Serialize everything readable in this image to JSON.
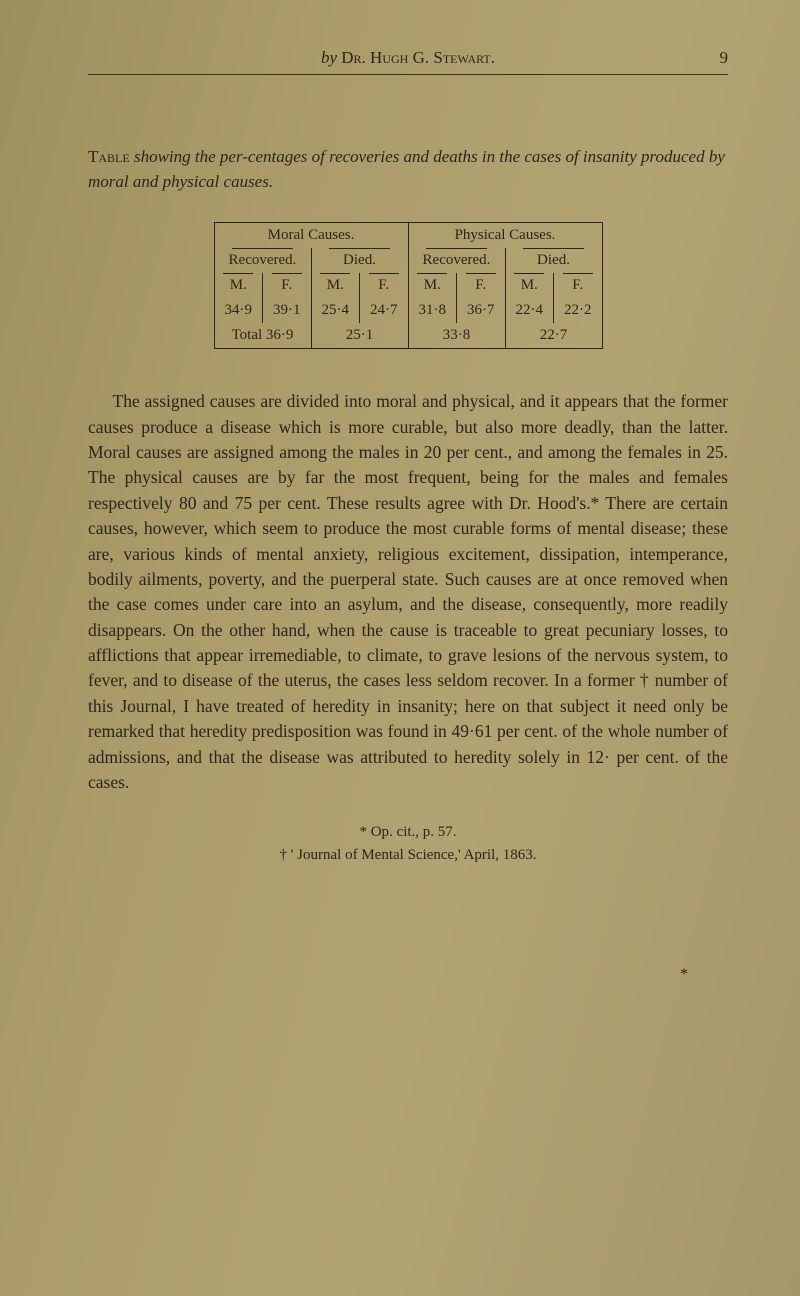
{
  "header": {
    "by": "by",
    "author_sc": "Dr. Hugh G. Stewart.",
    "page_number": "9"
  },
  "table_caption": {
    "lead_sc": "Table",
    "rest_italic": "showing the per-centages of recoveries and deaths in the cases of insanity produced by moral and physical causes."
  },
  "table": {
    "group_headers": [
      "Moral Causes.",
      "Physical Causes."
    ],
    "sub_headers": [
      "Recovered.",
      "Died.",
      "Recovered.",
      "Died."
    ],
    "mf_labels": [
      "M.",
      "F.",
      "M.",
      "F.",
      "M.",
      "F.",
      "M.",
      "F."
    ],
    "values": [
      "34·9",
      "39·1",
      "25·4",
      "24·7",
      "31·8",
      "36·7",
      "22·4",
      "22·2"
    ],
    "totals_label": "Total 36·9",
    "totals": [
      "25·1",
      "33·8",
      "22·7"
    ]
  },
  "body": {
    "paragraph": "The assigned causes are divided into moral and physical, and it appears that the former causes produce a disease which is more curable, but also more deadly, than the latter. Moral causes are assigned among the males in 20 per cent., and among the females in 25. The physical causes are by far the most frequent, being for the males and females respectively 80 and 75 per cent. These results agree with Dr. Hood's.* There are certain causes, however, which seem to produce the most curable forms of mental disease; these are, various kinds of mental anxiety, religious excitement, dissipation, intemperance, bodily ailments, poverty, and the puerperal state. Such causes are at once removed when the case comes under care into an asylum, and the disease, consequently, more readily disappears. On the other hand, when the cause is traceable to great pecuniary losses, to afflictions that appear irremediable, to climate, to grave lesions of the nervous system, to fever, and to disease of the uterus, the cases less seldom recover. In a former † number of this Journal, I have treated of heredity in insanity; here on that subject it need only be remarked that heredity predisposition was found in 49·61 per cent. of the whole number of admissions, and that the disease was attributed to heredity solely in 12· per cent. of the cases."
  },
  "footnotes": {
    "a": "* Op. cit., p. 57.",
    "b": "† ' Journal of Mental Science,' April, 1863."
  },
  "bottom_mark": "*",
  "colors": {
    "page_bg": "#a89968",
    "text": "#2a2418",
    "rule": "#3a321f"
  }
}
